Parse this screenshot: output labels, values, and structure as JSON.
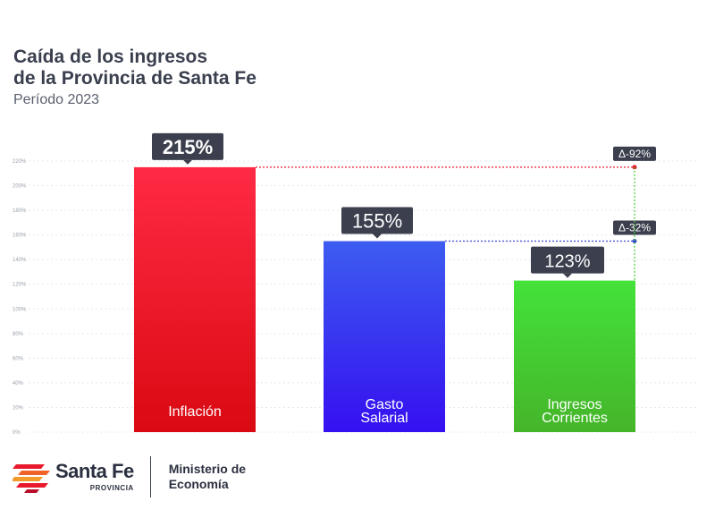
{
  "title_line1": "Caída de los ingresos",
  "title_line2": "de la Provincia de Santa Fe",
  "subtitle": "Período 2023",
  "chart_data": {
    "type": "bar",
    "categories": [
      "Inflación",
      "Gasto Salarial",
      "Ingresos Corrientes"
    ],
    "values": [
      215,
      155,
      123
    ],
    "value_labels": [
      "215%",
      "155%",
      "123%"
    ],
    "ylim": [
      0,
      220
    ],
    "yticks": [
      "0%",
      "20%",
      "40%",
      "60%",
      "80%",
      "100%",
      "120%",
      "140%",
      "160%",
      "180%",
      "200%",
      "220%"
    ],
    "colors": [
      "#e8192c",
      "#3a3ef0",
      "#3ecf2a"
    ],
    "annotations": [
      {
        "label": "Δ-92%",
        "from_value": 215,
        "to_value": 123
      },
      {
        "label": "Δ-32%",
        "from_value": 155,
        "to_value": 123
      }
    ],
    "grid": true
  },
  "footer": {
    "logo_name": "Santa Fe",
    "logo_sub": "PROVINCIA",
    "ministry_line1": "Ministerio de",
    "ministry_line2": "Economía"
  }
}
